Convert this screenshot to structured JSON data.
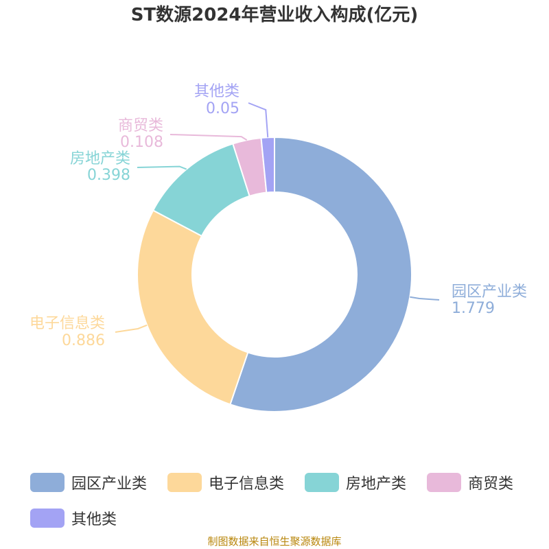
{
  "title": "ST数源2024年营业收入构成(亿元)",
  "source_note": "制图数据来自恒生聚源数据库",
  "chart_data": {
    "type": "pie",
    "variant": "donut",
    "title": "ST数源2024年营业收入构成(亿元)",
    "slices": [
      {
        "label": "园区产业类",
        "value": 1.779,
        "value_label": "1.779",
        "color": "#8eadd9"
      },
      {
        "label": "电子信息类",
        "value": 0.886,
        "value_label": "0.886",
        "color": "#fdd89a"
      },
      {
        "label": "房地产类",
        "value": 0.398,
        "value_label": "0.398",
        "color": "#86d4d6"
      },
      {
        "label": "商贸类",
        "value": 0.108,
        "value_label": "0.108",
        "color": "#e8b9da"
      },
      {
        "label": "其他类",
        "value": 0.05,
        "value_label": "0.05",
        "color": "#a3a3f4"
      }
    ],
    "legend": {
      "position": "bottom"
    }
  }
}
